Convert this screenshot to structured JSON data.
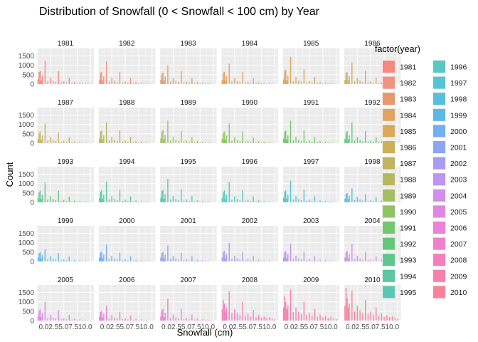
{
  "chart_data": {
    "type": "bar",
    "title": "Distribution of Snowfall (0 < Snowfall < 100 cm) by Year",
    "xlabel": "Snowfall (cm)",
    "ylabel": "Count",
    "ylim": [
      0,
      1900
    ],
    "y_ticks": [
      "0",
      "500",
      "1000",
      "1500"
    ],
    "x_ticks": [
      "0.0",
      "2.5",
      "5.0",
      "7.5",
      "10.0"
    ],
    "x_tick_label_row": "0.02.55.07.510.0",
    "xlim": [
      0,
      10.6
    ],
    "bins": [
      0.2,
      0.4,
      0.6,
      0.8,
      1.0,
      1.5,
      2.0,
      2.5,
      3.0,
      3.5,
      4.0,
      4.5,
      5.0,
      5.5,
      6.0,
      6.5,
      7.0,
      7.5,
      8.0,
      8.5,
      9.0,
      9.5,
      10.0
    ],
    "facet_grid": "6 columns x 5 rows",
    "grid": true,
    "legend": {
      "title": "factor(year)",
      "placement": "right",
      "columns": 2
    },
    "series": [
      {
        "name": "1981",
        "color": "#F8766D",
        "values": [
          250,
          650,
          700,
          200,
          450,
          1250,
          150,
          350,
          180,
          120,
          700,
          90,
          150,
          80,
          350,
          60,
          120,
          50,
          80,
          40,
          60,
          30,
          20
        ]
      },
      {
        "name": "1982",
        "color": "#F1826C",
        "values": [
          240,
          600,
          650,
          180,
          420,
          1220,
          130,
          330,
          170,
          110,
          650,
          80,
          140,
          70,
          330,
          55,
          110,
          45,
          75,
          35,
          55,
          25,
          18
        ]
      },
      {
        "name": "1983",
        "color": "#E58A56",
        "values": [
          230,
          550,
          600,
          180,
          400,
          1000,
          130,
          320,
          170,
          110,
          700,
          80,
          140,
          70,
          320,
          50,
          110,
          45,
          70,
          35,
          50,
          25,
          18
        ]
      },
      {
        "name": "1984",
        "color": "#DE954A",
        "values": [
          220,
          600,
          650,
          200,
          420,
          1100,
          140,
          330,
          170,
          110,
          650,
          80,
          140,
          70,
          320,
          50,
          100,
          45,
          70,
          35,
          50,
          25,
          18
        ]
      },
      {
        "name": "1985",
        "color": "#D49C42",
        "values": [
          250,
          700,
          750,
          220,
          450,
          1450,
          160,
          380,
          190,
          130,
          800,
          90,
          160,
          80,
          380,
          60,
          120,
          50,
          80,
          40,
          60,
          30,
          20
        ]
      },
      {
        "name": "1986",
        "color": "#C8A23C",
        "values": [
          230,
          580,
          640,
          190,
          420,
          1150,
          140,
          340,
          180,
          110,
          700,
          85,
          150,
          75,
          350,
          55,
          110,
          48,
          75,
          38,
          55,
          28,
          19
        ]
      },
      {
        "name": "1987",
        "color": "#B9A846",
        "values": [
          220,
          560,
          620,
          190,
          400,
          1050,
          140,
          330,
          170,
          110,
          580,
          80,
          140,
          70,
          320,
          50,
          100,
          45,
          70,
          35,
          50,
          25,
          18
        ]
      },
      {
        "name": "1988",
        "color": "#ABAD48",
        "values": [
          240,
          620,
          680,
          200,
          430,
          1100,
          150,
          340,
          180,
          120,
          680,
          85,
          150,
          75,
          340,
          55,
          110,
          48,
          75,
          38,
          55,
          28,
          19
        ]
      },
      {
        "name": "1989",
        "color": "#98B54A",
        "values": [
          250,
          620,
          700,
          210,
          440,
          1200,
          150,
          350,
          180,
          120,
          650,
          85,
          150,
          75,
          340,
          55,
          110,
          48,
          75,
          38,
          55,
          28,
          19
        ]
      },
      {
        "name": "1990",
        "color": "#7CBB4A",
        "values": [
          230,
          550,
          620,
          190,
          410,
          1050,
          140,
          330,
          170,
          110,
          620,
          80,
          140,
          70,
          310,
          50,
          100,
          45,
          70,
          35,
          50,
          25,
          18
        ]
      },
      {
        "name": "1991",
        "color": "#5EBF55",
        "values": [
          240,
          600,
          680,
          200,
          420,
          1200,
          150,
          340,
          180,
          115,
          680,
          85,
          150,
          75,
          330,
          55,
          110,
          48,
          75,
          38,
          55,
          28,
          19
        ]
      },
      {
        "name": "1992",
        "color": "#4CC06A",
        "values": [
          230,
          570,
          640,
          190,
          410,
          1100,
          140,
          335,
          175,
          110,
          640,
          82,
          145,
          72,
          320,
          52,
          105,
          46,
          72,
          36,
          52,
          26,
          18
        ]
      },
      {
        "name": "1993",
        "color": "#44C07E",
        "values": [
          220,
          540,
          620,
          185,
          400,
          1050,
          140,
          330,
          170,
          110,
          620,
          80,
          140,
          70,
          310,
          50,
          100,
          45,
          70,
          35,
          50,
          25,
          18
        ]
      },
      {
        "name": "1994",
        "color": "#3FC193",
        "values": [
          230,
          560,
          640,
          190,
          410,
          1100,
          145,
          335,
          175,
          112,
          640,
          82,
          145,
          72,
          320,
          52,
          105,
          46,
          72,
          36,
          52,
          26,
          18
        ]
      },
      {
        "name": "1995",
        "color": "#3FC1A6",
        "values": [
          240,
          600,
          680,
          200,
          430,
          1250,
          150,
          345,
          180,
          118,
          690,
          86,
          152,
          76,
          340,
          55,
          110,
          48,
          75,
          38,
          55,
          28,
          19
        ]
      },
      {
        "name": "1996",
        "color": "#3FBFBB",
        "values": [
          230,
          560,
          630,
          190,
          410,
          1100,
          140,
          335,
          175,
          110,
          640,
          82,
          145,
          72,
          320,
          52,
          105,
          46,
          72,
          36,
          52,
          26,
          18
        ]
      },
      {
        "name": "1997",
        "color": "#3BBCCD",
        "values": [
          230,
          570,
          640,
          190,
          410,
          1150,
          145,
          335,
          175,
          112,
          660,
          83,
          146,
          73,
          325,
          53,
          106,
          47,
          73,
          37,
          53,
          27,
          18
        ]
      },
      {
        "name": "1998",
        "color": "#39B6DC",
        "values": [
          200,
          450,
          500,
          160,
          350,
          750,
          120,
          300,
          150,
          100,
          420,
          70,
          120,
          60,
          270,
          45,
          90,
          40,
          60,
          30,
          45,
          22,
          15
        ]
      },
      {
        "name": "1999",
        "color": "#41AFE8",
        "values": [
          200,
          450,
          500,
          160,
          350,
          650,
          120,
          290,
          150,
          100,
          450,
          70,
          120,
          60,
          260,
          45,
          90,
          40,
          60,
          30,
          45,
          22,
          15
        ]
      },
      {
        "name": "2000",
        "color": "#5AA4F0",
        "values": [
          210,
          480,
          520,
          170,
          360,
          900,
          125,
          300,
          155,
          105,
          480,
          72,
          125,
          62,
          270,
          46,
          92,
          41,
          62,
          31,
          46,
          23,
          16
        ]
      },
      {
        "name": "2001",
        "color": "#7C98F4",
        "values": [
          210,
          470,
          520,
          165,
          360,
          850,
          125,
          300,
          155,
          105,
          470,
          72,
          125,
          62,
          270,
          46,
          92,
          41,
          62,
          31,
          46,
          23,
          16
        ]
      },
      {
        "name": "2002",
        "color": "#9B8DF5",
        "values": [
          220,
          520,
          560,
          175,
          380,
          1000,
          130,
          310,
          160,
          108,
          520,
          75,
          130,
          65,
          280,
          48,
          95,
          42,
          64,
          32,
          48,
          24,
          16
        ]
      },
      {
        "name": "2003",
        "color": "#B584F3",
        "values": [
          220,
          500,
          550,
          175,
          380,
          950,
          130,
          310,
          160,
          108,
          510,
          75,
          130,
          65,
          280,
          48,
          95,
          42,
          64,
          32,
          48,
          24,
          16
        ]
      },
      {
        "name": "2004",
        "color": "#CB7CEC",
        "values": [
          220,
          510,
          560,
          175,
          380,
          950,
          130,
          310,
          160,
          108,
          520,
          75,
          130,
          65,
          280,
          48,
          95,
          42,
          64,
          32,
          48,
          24,
          16
        ]
      },
      {
        "name": "2005",
        "color": "#DC74E2",
        "values": [
          230,
          550,
          600,
          185,
          400,
          1000,
          135,
          320,
          165,
          110,
          560,
          78,
          135,
          68,
          300,
          50,
          100,
          44,
          68,
          34,
          50,
          25,
          17
        ]
      },
      {
        "name": "2006",
        "color": "#E96FD5",
        "values": [
          210,
          470,
          520,
          165,
          360,
          800,
          125,
          300,
          155,
          104,
          470,
          72,
          125,
          62,
          265,
          46,
          92,
          41,
          62,
          31,
          46,
          23,
          16
        ]
      },
      {
        "name": "2007",
        "color": "#F26BC5",
        "values": [
          230,
          560,
          620,
          190,
          410,
          1150,
          140,
          330,
          170,
          110,
          620,
          80,
          140,
          70,
          310,
          50,
          100,
          45,
          70,
          35,
          50,
          25,
          18
        ]
      },
      {
        "name": "2008",
        "color": "#F76AB3",
        "values": [
          600,
          1100,
          900,
          500,
          700,
          1550,
          400,
          600,
          420,
          300,
          1000,
          250,
          380,
          220,
          560,
          180,
          300,
          160,
          220,
          140,
          180,
          110,
          80
        ]
      },
      {
        "name": "2009",
        "color": "#FA6BA0",
        "values": [
          700,
          1300,
          1000,
          600,
          800,
          1650,
          450,
          700,
          480,
          350,
          1000,
          300,
          420,
          260,
          620,
          200,
          320,
          180,
          240,
          160,
          200,
          120,
          90
        ]
      },
      {
        "name": "2010",
        "color": "#FA6E8C",
        "values": [
          800,
          1750,
          1200,
          700,
          900,
          1600,
          500,
          800,
          550,
          400,
          1100,
          350,
          480,
          300,
          700,
          240,
          380,
          210,
          280,
          180,
          230,
          140,
          100
        ]
      }
    ]
  }
}
